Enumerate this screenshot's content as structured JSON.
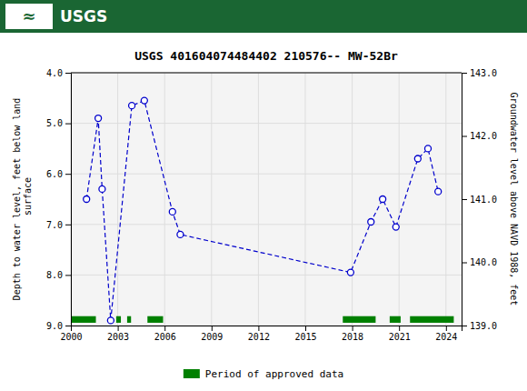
{
  "chart_data": {
    "type": "line",
    "title": "USGS 401604074484402 210576-- MW-52Br",
    "annotations": [
      "≈",
      "USGS"
    ],
    "y_label": "Depth to water level, feet below land\n surface",
    "y2_label": "Groundwater level above NAVD 1988, feet",
    "xlim": [
      2000,
      2025
    ],
    "xticks": [
      2000,
      2003,
      2006,
      2009,
      2012,
      2015,
      2018,
      2021,
      2024
    ],
    "ylim": [
      9.0,
      4.0
    ],
    "yticks": [
      {
        "value": 4.0,
        "label": "4.0"
      },
      {
        "value": 5.0,
        "label": "5.0"
      },
      {
        "value": 6.0,
        "label": "6.0"
      },
      {
        "value": 7.0,
        "label": "7.0"
      },
      {
        "value": 8.0,
        "label": "8.0"
      },
      {
        "value": 9.0,
        "label": "9.0"
      }
    ],
    "y2lim": [
      139.0,
      143.0
    ],
    "y2ticks": [
      {
        "value": 139.0,
        "label": "139.0"
      },
      {
        "value": 140.0,
        "label": "140.0"
      },
      {
        "value": 141.0,
        "label": "141.0"
      },
      {
        "value": 142.0,
        "label": "142.0"
      },
      {
        "value": 143.0,
        "label": "143.0"
      }
    ],
    "grid": true,
    "legend": "bottom",
    "series": [
      {
        "type": "line",
        "color": "#0000cc",
        "marker": "circle",
        "line_style": "dashed",
        "x": [
          2001.0,
          2001.75,
          2002.0,
          2002.55,
          2003.9,
          2004.7,
          2006.5,
          2007.0,
          2017.9,
          2019.2,
          2019.95,
          2020.8,
          2022.2,
          2022.85,
          2023.5
        ],
        "values": [
          6.5,
          4.9,
          6.3,
          8.9,
          4.65,
          4.55,
          6.75,
          7.2,
          7.95,
          6.95,
          6.5,
          7.05,
          5.7,
          5.5,
          6.35
        ]
      },
      {
        "type": "bar",
        "orientation": "horizontal",
        "name": "Period of approved data",
        "color": "#008000",
        "y": 8.88,
        "height": 0.13,
        "segments": [
          [
            2000.0,
            2001.6
          ],
          [
            2002.9,
            2003.2
          ],
          [
            2003.6,
            2003.85
          ],
          [
            2004.9,
            2005.9
          ],
          [
            2017.4,
            2019.5
          ],
          [
            2020.4,
            2021.1
          ],
          [
            2021.7,
            2024.5
          ]
        ]
      }
    ]
  }
}
